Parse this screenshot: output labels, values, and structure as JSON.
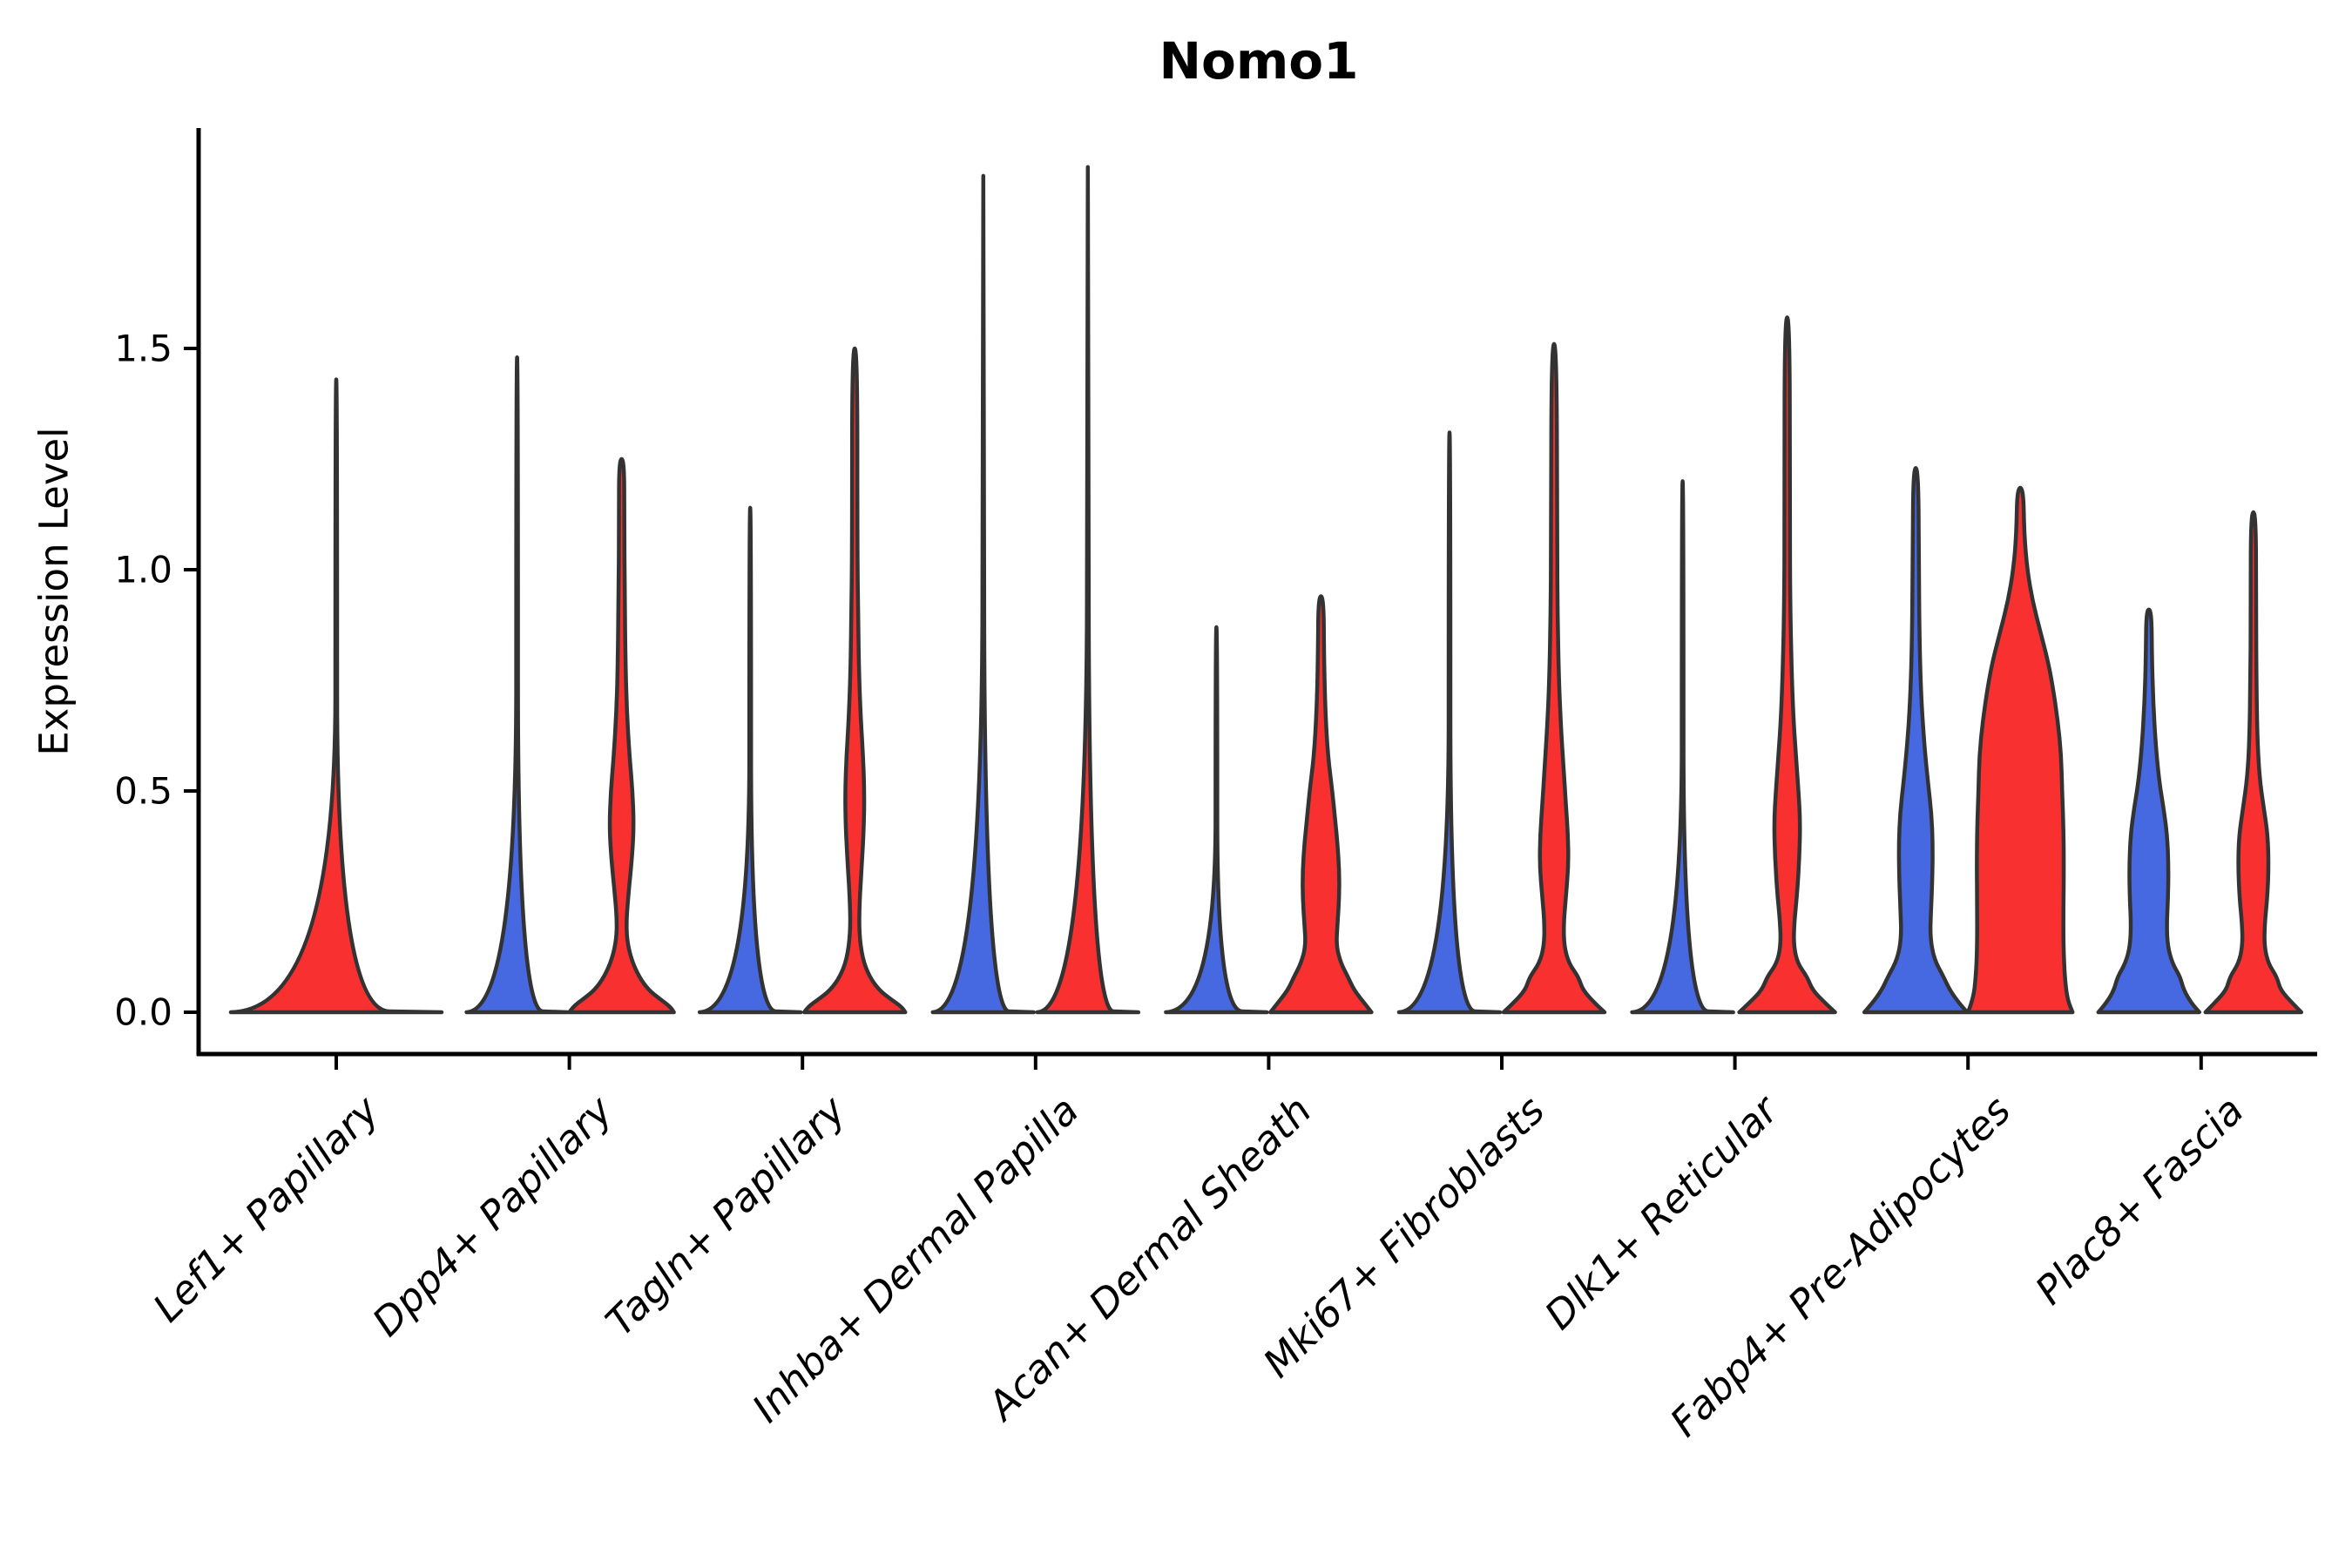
{
  "title": "Nomo1",
  "colors": {
    "red": "#F83030",
    "blue": "#4669E1",
    "outline": "#333333",
    "axis": "#000000"
  },
  "chart_data": {
    "type": "violin",
    "title": "Nomo1",
    "ylabel": "Expression Level",
    "ylim": [
      -0.09,
      2.0
    ],
    "grid": false,
    "legend": "none",
    "yticks": [
      0.0,
      0.5,
      1.0,
      1.5
    ],
    "ytick_labels": [
      "0.0",
      "0.5",
      "1.0",
      "1.5"
    ],
    "categories": [
      "Lef1+ Papillary",
      "Dpp4+ Papillary",
      "Tagln+ Papillary",
      "Inhba+ Dermal Papilla",
      "Acan+ Dermal Sheath",
      "Mki67+ Fibroblasts",
      "Dlk1+ Reticular",
      "Fabp4+ Pre-Adipocytes",
      "Plac8+ Fascia"
    ],
    "series": [
      {
        "position": "left",
        "color": "#4669E1"
      },
      {
        "position": "right",
        "color": "#F83030"
      }
    ],
    "violins": [
      {
        "category_index": 0,
        "side": "center",
        "color": "#F83030",
        "collapsed": true,
        "max_expression": 1.43,
        "profile": [
          [
            0,
            121
          ],
          [
            0.004,
            1
          ],
          [
            1.43,
            1
          ]
        ]
      },
      {
        "category_index": 1,
        "side": "left",
        "color": "#4669E1",
        "collapsed": true,
        "max_expression": 1.48,
        "profile": [
          [
            0,
            58
          ],
          [
            0.004,
            1
          ],
          [
            1.48,
            1
          ]
        ]
      },
      {
        "category_index": 1,
        "side": "right",
        "color": "#F83030",
        "collapsed": false,
        "max_expression": 1.25,
        "profile": [
          [
            0,
            60
          ],
          [
            0.012,
            56
          ],
          [
            0.03,
            44
          ],
          [
            0.05,
            31
          ],
          [
            0.08,
            20
          ],
          [
            0.12,
            11
          ],
          [
            0.165,
            6
          ],
          [
            0.21,
            5.5
          ],
          [
            0.27,
            8
          ],
          [
            0.35,
            12
          ],
          [
            0.42,
            14
          ],
          [
            0.5,
            12.5
          ],
          [
            0.58,
            9
          ],
          [
            0.68,
            6
          ],
          [
            0.78,
            4.5
          ],
          [
            0.95,
            3.5
          ],
          [
            1.1,
            3
          ],
          [
            1.25,
            3
          ]
        ]
      },
      {
        "category_index": 2,
        "side": "left",
        "color": "#4669E1",
        "collapsed": true,
        "max_expression": 1.14,
        "profile": [
          [
            0,
            58
          ],
          [
            0.004,
            1
          ],
          [
            1.14,
            1
          ]
        ]
      },
      {
        "category_index": 2,
        "side": "right",
        "color": "#F83030",
        "collapsed": false,
        "max_expression": 1.5,
        "profile": [
          [
            0,
            58
          ],
          [
            0.012,
            54
          ],
          [
            0.03,
            41
          ],
          [
            0.05,
            28
          ],
          [
            0.08,
            17
          ],
          [
            0.12,
            9
          ],
          [
            0.18,
            5
          ],
          [
            0.25,
            5.5
          ],
          [
            0.33,
            8
          ],
          [
            0.42,
            10.5
          ],
          [
            0.5,
            11
          ],
          [
            0.58,
            9.5
          ],
          [
            0.66,
            7
          ],
          [
            0.76,
            5
          ],
          [
            0.88,
            4
          ],
          [
            1.05,
            3
          ],
          [
            1.5,
            3
          ]
        ]
      },
      {
        "category_index": 3,
        "side": "left",
        "color": "#4669E1",
        "collapsed": true,
        "max_expression": 1.89,
        "profile": [
          [
            0,
            58
          ],
          [
            0.004,
            1
          ],
          [
            1.89,
            1
          ]
        ]
      },
      {
        "category_index": 3,
        "side": "right",
        "color": "#F83030",
        "collapsed": true,
        "max_expression": 1.91,
        "profile": [
          [
            0,
            58
          ],
          [
            0.004,
            1
          ],
          [
            1.91,
            1
          ]
        ]
      },
      {
        "category_index": 4,
        "side": "left",
        "color": "#4669E1",
        "collapsed": true,
        "max_expression": 0.87,
        "profile": [
          [
            0,
            58
          ],
          [
            0.004,
            1
          ],
          [
            0.87,
            1
          ]
        ]
      },
      {
        "category_index": 4,
        "side": "right",
        "color": "#F83030",
        "collapsed": false,
        "max_expression": 0.94,
        "profile": [
          [
            0,
            58
          ],
          [
            0.02,
            50
          ],
          [
            0.05,
            38
          ],
          [
            0.08,
            31
          ],
          [
            0.11,
            23
          ],
          [
            0.15,
            17.5
          ],
          [
            0.2,
            19
          ],
          [
            0.26,
            21
          ],
          [
            0.32,
            21
          ],
          [
            0.38,
            19
          ],
          [
            0.43,
            16.5
          ],
          [
            0.5,
            13
          ],
          [
            0.58,
            8
          ],
          [
            0.68,
            5
          ],
          [
            0.8,
            3.5
          ],
          [
            0.94,
            3
          ]
        ]
      },
      {
        "category_index": 5,
        "side": "left",
        "color": "#4669E1",
        "collapsed": true,
        "max_expression": 1.31,
        "profile": [
          [
            0,
            58
          ],
          [
            0.004,
            1
          ],
          [
            1.31,
            1
          ]
        ]
      },
      {
        "category_index": 5,
        "side": "right",
        "color": "#F83030",
        "collapsed": false,
        "max_expression": 1.51,
        "profile": [
          [
            0,
            58
          ],
          [
            0.02,
            47
          ],
          [
            0.05,
            33
          ],
          [
            0.08,
            28
          ],
          [
            0.11,
            17
          ],
          [
            0.15,
            11.5
          ],
          [
            0.2,
            11
          ],
          [
            0.26,
            13.5
          ],
          [
            0.33,
            16.5
          ],
          [
            0.4,
            16
          ],
          [
            0.47,
            13.5
          ],
          [
            0.55,
            11
          ],
          [
            0.64,
            8
          ],
          [
            0.75,
            5.5
          ],
          [
            0.9,
            4
          ],
          [
            1.05,
            3.5
          ],
          [
            1.51,
            3
          ]
        ]
      },
      {
        "category_index": 6,
        "side": "left",
        "color": "#4669E1",
        "collapsed": true,
        "max_expression": 1.2,
        "profile": [
          [
            0,
            58
          ],
          [
            0.004,
            1
          ],
          [
            1.2,
            1
          ]
        ]
      },
      {
        "category_index": 6,
        "side": "right",
        "color": "#F83030",
        "collapsed": false,
        "max_expression": 1.57,
        "profile": [
          [
            0,
            55
          ],
          [
            0.02,
            44
          ],
          [
            0.05,
            29
          ],
          [
            0.08,
            23
          ],
          [
            0.11,
            12
          ],
          [
            0.15,
            7.5
          ],
          [
            0.2,
            8
          ],
          [
            0.27,
            11.5
          ],
          [
            0.35,
            14
          ],
          [
            0.43,
            15
          ],
          [
            0.5,
            13
          ],
          [
            0.58,
            10
          ],
          [
            0.67,
            7
          ],
          [
            0.78,
            5
          ],
          [
            0.92,
            3.5
          ],
          [
            1.1,
            3
          ],
          [
            1.57,
            3
          ]
        ]
      },
      {
        "category_index": 7,
        "side": "left",
        "color": "#4669E1",
        "collapsed": false,
        "max_expression": 1.23,
        "profile": [
          [
            0,
            59
          ],
          [
            0.02,
            50
          ],
          [
            0.05,
            39
          ],
          [
            0.08,
            32
          ],
          [
            0.12,
            21
          ],
          [
            0.17,
            16.5
          ],
          [
            0.23,
            17.5
          ],
          [
            0.3,
            19
          ],
          [
            0.38,
            19.5
          ],
          [
            0.45,
            18
          ],
          [
            0.52,
            14
          ],
          [
            0.6,
            10
          ],
          [
            0.7,
            6.5
          ],
          [
            0.82,
            4.5
          ],
          [
            1.0,
            3.5
          ],
          [
            1.23,
            3
          ]
        ]
      },
      {
        "category_index": 7,
        "side": "right",
        "color": "#F83030",
        "collapsed": false,
        "max_expression": 1.185,
        "profile": [
          [
            0,
            60
          ],
          [
            0.03,
            54
          ],
          [
            0.08,
            51
          ],
          [
            0.15,
            49.5
          ],
          [
            0.24,
            49.5
          ],
          [
            0.33,
            50
          ],
          [
            0.42,
            49.5
          ],
          [
            0.5,
            48
          ],
          [
            0.58,
            47
          ],
          [
            0.66,
            43
          ],
          [
            0.74,
            37
          ],
          [
            0.8,
            31
          ],
          [
            0.86,
            23
          ],
          [
            0.93,
            14
          ],
          [
            1.0,
            8
          ],
          [
            1.08,
            4.5
          ],
          [
            1.185,
            3.5
          ]
        ]
      },
      {
        "category_index": 8,
        "side": "left",
        "color": "#4669E1",
        "collapsed": false,
        "max_expression": 0.91,
        "profile": [
          [
            0,
            58
          ],
          [
            0.02,
            49
          ],
          [
            0.05,
            40
          ],
          [
            0.08,
            36
          ],
          [
            0.11,
            27
          ],
          [
            0.15,
            21.5
          ],
          [
            0.2,
            20.5
          ],
          [
            0.26,
            22
          ],
          [
            0.33,
            22.5
          ],
          [
            0.4,
            21
          ],
          [
            0.46,
            17
          ],
          [
            0.52,
            12
          ],
          [
            0.6,
            8
          ],
          [
            0.7,
            5
          ],
          [
            0.8,
            3.5
          ],
          [
            0.91,
            3
          ]
        ]
      },
      {
        "category_index": 8,
        "side": "right",
        "color": "#F83030",
        "collapsed": false,
        "max_expression": 1.13,
        "profile": [
          [
            0,
            55
          ],
          [
            0.02,
            45
          ],
          [
            0.05,
            31
          ],
          [
            0.08,
            27
          ],
          [
            0.11,
            17
          ],
          [
            0.15,
            12.5
          ],
          [
            0.2,
            13
          ],
          [
            0.26,
            16
          ],
          [
            0.33,
            17.5
          ],
          [
            0.4,
            16.5
          ],
          [
            0.46,
            12
          ],
          [
            0.53,
            7
          ],
          [
            0.62,
            4.5
          ],
          [
            0.75,
            3.5
          ],
          [
            0.9,
            3
          ],
          [
            1.13,
            3
          ]
        ]
      }
    ]
  }
}
